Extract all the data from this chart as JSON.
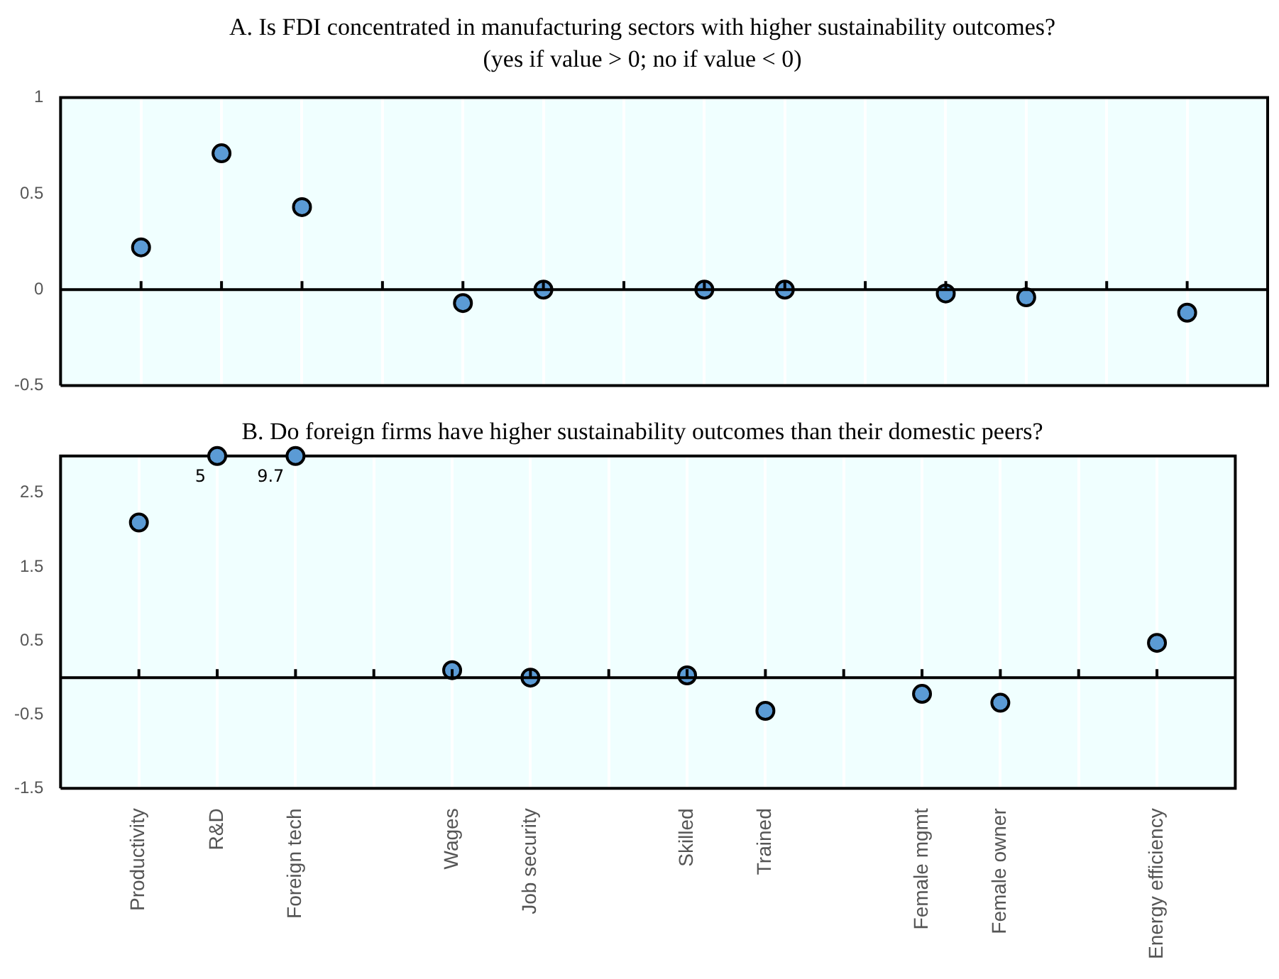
{
  "chart_data": [
    {
      "type": "scatter",
      "title": "A. Is FDI concentrated in manufacturing sectors with higher sustainability outcomes?",
      "subtitle": "(yes if value > 0; no if value < 0)",
      "categories": [
        null,
        null,
        null,
        null,
        null,
        null,
        null,
        null,
        null,
        null,
        null,
        null,
        null,
        null,
        null,
        null
      ],
      "values": [
        null,
        0.22,
        0.71,
        0.43,
        null,
        -0.07,
        0,
        null,
        0,
        0,
        null,
        -0.02,
        -0.04,
        null,
        -0.12,
        null
      ],
      "color": "#5b9bd5",
      "marker": "circle",
      "ylim": [
        -0.5,
        1
      ],
      "yticks": [
        -0.5,
        0,
        0.5,
        1
      ],
      "grid": "x",
      "tick_labels": "y",
      "ref_lines": [
        {
          "axis": "y",
          "value": 0
        }
      ]
    },
    {
      "type": "scatter",
      "title": "B. Do foreign firms have higher sustainability outcomes than their domestic peers?",
      "categories": [
        null,
        "Productivity",
        "R&D",
        "Foreign tech",
        null,
        "Wages",
        "Job security",
        null,
        "Skilled",
        "Trained",
        null,
        "Female mgmt",
        "Female owner",
        null,
        "Energy efficiency",
        null
      ],
      "values": [
        null,
        2.1,
        null,
        null,
        null,
        0.1,
        0,
        null,
        0.03,
        -0.45,
        null,
        -0.22,
        -0.34,
        null,
        0.47,
        null
      ],
      "color": "#5b9bd5",
      "marker": "circle",
      "ylim": [
        -1.5,
        3
      ],
      "yticks": [
        -1.5,
        -0.5,
        0.5,
        1.5,
        2.5
      ],
      "grid": "x",
      "ref_lines": [
        {
          "axis": "y",
          "value": 0
        }
      ],
      "annotations": [
        {
          "text": "5",
          "x": "R&D",
          "y": 3
        },
        {
          "text": "9.7",
          "x": "Foreign tech",
          "y": 3
        }
      ]
    }
  ]
}
